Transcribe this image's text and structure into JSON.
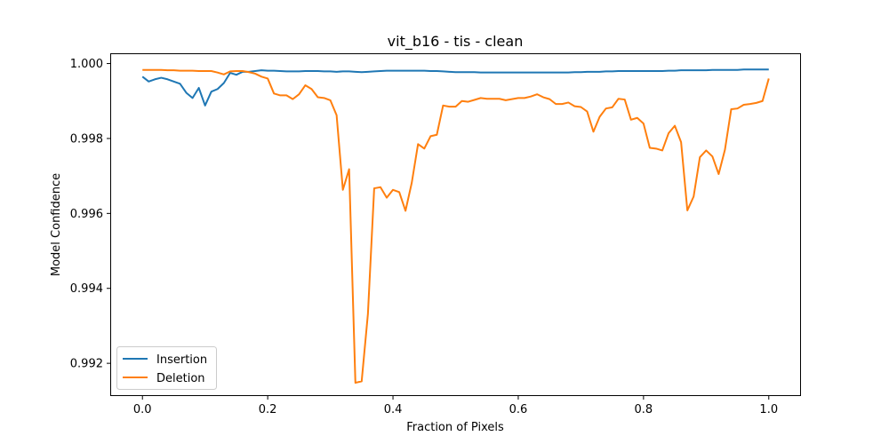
{
  "chart_data": {
    "type": "line",
    "title": "vit_b16 - tis - clean",
    "xlabel": "Fraction of Pixels",
    "ylabel": "Model Confidence",
    "xlim": [
      -0.05,
      1.05
    ],
    "ylim": [
      0.99115,
      1.00025
    ],
    "xticks": [
      0.0,
      0.2,
      0.4,
      0.6,
      0.8,
      1.0
    ],
    "xtick_labels": [
      "0.0",
      "0.2",
      "0.4",
      "0.6",
      "0.8",
      "1.0"
    ],
    "yticks": [
      0.992,
      0.994,
      0.996,
      0.998,
      1.0
    ],
    "ytick_labels": [
      "0.992",
      "0.994",
      "0.996",
      "0.998",
      "1.000"
    ],
    "grid": false,
    "legend_position": "lower-left",
    "x": [
      0.0,
      0.01,
      0.02,
      0.03,
      0.04,
      0.05,
      0.06,
      0.07,
      0.08,
      0.09,
      0.1,
      0.11,
      0.12,
      0.13,
      0.14,
      0.15,
      0.16,
      0.17,
      0.18,
      0.19,
      0.2,
      0.21,
      0.22,
      0.23,
      0.24,
      0.25,
      0.26,
      0.27,
      0.28,
      0.29,
      0.3,
      0.31,
      0.32,
      0.33,
      0.34,
      0.35,
      0.36,
      0.37,
      0.38,
      0.39,
      0.4,
      0.41,
      0.42,
      0.43,
      0.44,
      0.45,
      0.46,
      0.47,
      0.48,
      0.49,
      0.5,
      0.51,
      0.52,
      0.53,
      0.54,
      0.55,
      0.56,
      0.57,
      0.58,
      0.59,
      0.6,
      0.61,
      0.62,
      0.63,
      0.64,
      0.65,
      0.66,
      0.67,
      0.68,
      0.69,
      0.7,
      0.71,
      0.72,
      0.73,
      0.74,
      0.75,
      0.76,
      0.77,
      0.78,
      0.79,
      0.8,
      0.81,
      0.82,
      0.83,
      0.84,
      0.85,
      0.86,
      0.87,
      0.88,
      0.89,
      0.9,
      0.91,
      0.92,
      0.93,
      0.94,
      0.95,
      0.96,
      0.97,
      0.98,
      0.99,
      1.0
    ],
    "series": [
      {
        "name": "Insertion",
        "color": "#1f77b4",
        "values": [
          0.99965,
          0.99952,
          0.99958,
          0.99962,
          0.99958,
          0.99952,
          0.99946,
          0.99922,
          0.99908,
          0.99935,
          0.99888,
          0.99925,
          0.99932,
          0.99948,
          0.99975,
          0.9997,
          0.99978,
          0.99978,
          0.9998,
          0.99982,
          0.99981,
          0.99981,
          0.9998,
          0.99979,
          0.99979,
          0.99979,
          0.9998,
          0.9998,
          0.9998,
          0.99979,
          0.99979,
          0.99978,
          0.99979,
          0.99979,
          0.99978,
          0.99977,
          0.99978,
          0.99979,
          0.9998,
          0.99981,
          0.99981,
          0.99981,
          0.99981,
          0.99981,
          0.99981,
          0.99981,
          0.9998,
          0.9998,
          0.99979,
          0.99978,
          0.99977,
          0.99977,
          0.99977,
          0.99977,
          0.99976,
          0.99976,
          0.99976,
          0.99976,
          0.99976,
          0.99976,
          0.99976,
          0.99976,
          0.99976,
          0.99976,
          0.99976,
          0.99976,
          0.99976,
          0.99976,
          0.99976,
          0.99977,
          0.99977,
          0.99978,
          0.99978,
          0.99978,
          0.99979,
          0.99979,
          0.9998,
          0.9998,
          0.9998,
          0.9998,
          0.9998,
          0.9998,
          0.9998,
          0.9998,
          0.99981,
          0.99981,
          0.99982,
          0.99982,
          0.99982,
          0.99982,
          0.99982,
          0.99983,
          0.99983,
          0.99983,
          0.99983,
          0.99983,
          0.99984,
          0.99984,
          0.99984,
          0.99984,
          0.99984
        ]
      },
      {
        "name": "Deletion",
        "color": "#ff7f0e",
        "values": [
          0.99983,
          0.99983,
          0.99983,
          0.99983,
          0.99982,
          0.99982,
          0.99981,
          0.99981,
          0.99981,
          0.9998,
          0.9998,
          0.9998,
          0.99976,
          0.99971,
          0.99979,
          0.9998,
          0.9998,
          0.99977,
          0.99973,
          0.99965,
          0.9996,
          0.9992,
          0.99915,
          0.99915,
          0.99905,
          0.99918,
          0.99942,
          0.99932,
          0.9991,
          0.99908,
          0.99902,
          0.99862,
          0.99663,
          0.99718,
          0.99148,
          0.99152,
          0.99332,
          0.99667,
          0.9967,
          0.99642,
          0.99663,
          0.99657,
          0.99607,
          0.99682,
          0.99785,
          0.99773,
          0.99806,
          0.9981,
          0.99888,
          0.99885,
          0.99885,
          0.999,
          0.99898,
          0.99903,
          0.99908,
          0.99906,
          0.99906,
          0.99906,
          0.99902,
          0.99905,
          0.99908,
          0.99908,
          0.99912,
          0.99918,
          0.9991,
          0.99905,
          0.99892,
          0.99892,
          0.99896,
          0.99886,
          0.99884,
          0.99872,
          0.99818,
          0.99858,
          0.9988,
          0.99883,
          0.99906,
          0.99904,
          0.9985,
          0.99855,
          0.9984,
          0.99775,
          0.99773,
          0.99768,
          0.99814,
          0.99834,
          0.9979,
          0.99608,
          0.99645,
          0.9975,
          0.99768,
          0.99752,
          0.99705,
          0.9977,
          0.99878,
          0.9988,
          0.9989,
          0.99892,
          0.99895,
          0.999,
          0.9996
        ]
      }
    ]
  }
}
